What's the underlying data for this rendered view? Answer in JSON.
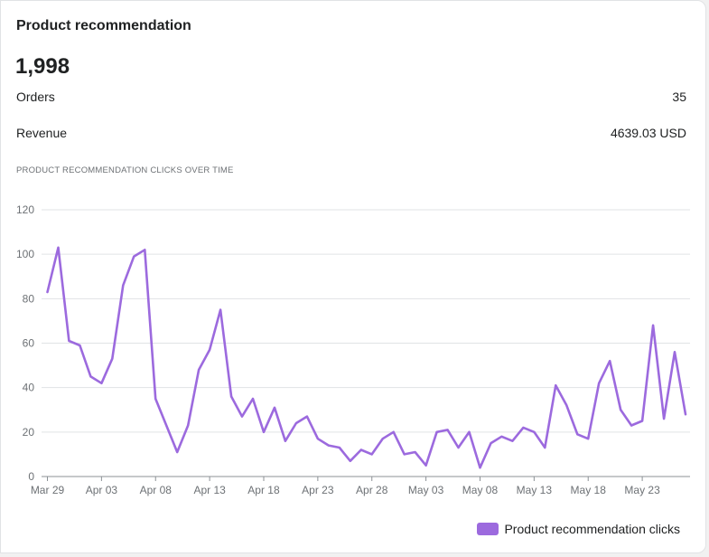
{
  "card": {
    "title": "Product recommendation",
    "total": "1,998",
    "orders_label": "Orders",
    "orders_value": "35",
    "revenue_label": "Revenue",
    "revenue_value": "4639.03 USD",
    "chart_label": "PRODUCT RECOMMENDATION CLICKS OVER TIME"
  },
  "colors": {
    "series": "#9c6ade",
    "grid": "#e1e3e5",
    "axis": "#8c9196"
  },
  "chart_data": {
    "type": "line",
    "title": "PRODUCT RECOMMENDATION CLICKS OVER TIME",
    "xlabel": "",
    "ylabel": "",
    "ylim": [
      0,
      120
    ],
    "yticks": [
      0,
      20,
      40,
      60,
      80,
      100,
      120
    ],
    "grid": true,
    "legend_position": "bottom-right",
    "x_tick_labels": [
      "Mar 29",
      "Apr 03",
      "Apr 08",
      "Apr 13",
      "Apr 18",
      "Apr 23",
      "Apr 28",
      "May 03",
      "May 08",
      "May 13",
      "May 18",
      "May 23"
    ],
    "x_tick_every": 5,
    "series": [
      {
        "name": "Product recommendation clicks",
        "values": [
          83,
          103,
          61,
          59,
          45,
          42,
          53,
          86,
          99,
          102,
          35,
          23,
          11,
          23,
          48,
          57,
          75,
          36,
          27,
          35,
          20,
          31,
          16,
          24,
          27,
          17,
          14,
          13,
          7,
          12,
          10,
          17,
          20,
          10,
          11,
          5,
          20,
          21,
          13,
          20,
          4,
          15,
          18,
          16,
          22,
          20,
          13,
          41,
          32,
          19,
          17,
          42,
          52,
          30,
          23,
          25,
          68,
          26,
          56,
          28
        ]
      }
    ]
  }
}
